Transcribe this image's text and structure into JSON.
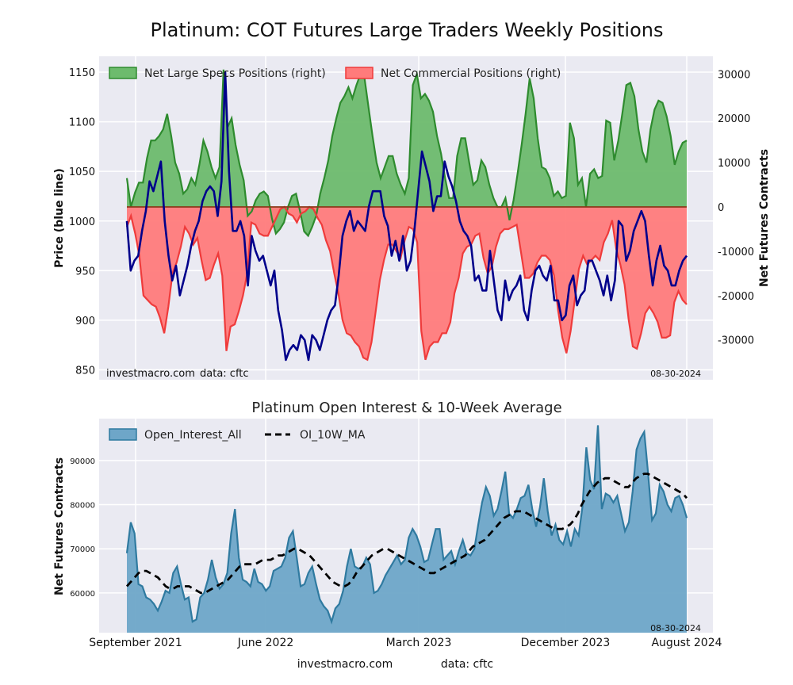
{
  "figure": {
    "main_title": "Platinum: COT Futures Large Traders Weekly Positions",
    "watermark": "investmacro.com",
    "data_source": "data: cftc",
    "date_stamp": "08-30-2024",
    "x_tick_labels": [
      "September 2021",
      "June 2022",
      "March 2023",
      "December 2023",
      "August 2024"
    ]
  },
  "chart_data": [
    {
      "type": "area",
      "title": "",
      "ylabel_left": "Price (blue line)",
      "ylabel_right": "Net Futures Contracts",
      "ylim_left": [
        840,
        1166
      ],
      "ylim_right": [
        -39000,
        34000
      ],
      "yticks_left": [
        850,
        900,
        950,
        1000,
        1050,
        1100,
        1150
      ],
      "yticks_right": [
        -30000,
        -20000,
        -10000,
        0,
        10000,
        20000,
        30000
      ],
      "legend_position": "top",
      "grid": true,
      "colors": {
        "specs": "#2e8b2e",
        "specs_fill": "#6dbb6d",
        "comm": "#ef3b3b",
        "comm_fill": "#ff7b7b",
        "price": "#00008b",
        "zero": "#8b3a1a"
      },
      "series": [
        {
          "name": "Net Large Specs Positions (right)",
          "axis": "right",
          "values": [
            6500,
            0,
            3200,
            5500,
            5500,
            11000,
            15000,
            15000,
            16000,
            17500,
            21000,
            16000,
            10000,
            7500,
            3000,
            4000,
            6500,
            5000,
            9500,
            15000,
            12500,
            9000,
            6500,
            9000,
            31000,
            18000,
            20000,
            14000,
            9500,
            6000,
            -2000,
            -1000,
            1500,
            3000,
            3500,
            2500,
            -2500,
            -6000,
            -5000,
            -3500,
            0,
            2500,
            3000,
            -1000,
            -5500,
            -6500,
            -4500,
            -2000,
            3000,
            6500,
            10500,
            16000,
            20000,
            23500,
            25000,
            27000,
            24500,
            27500,
            30000,
            29000,
            22500,
            16000,
            10000,
            6500,
            9000,
            11500,
            11500,
            7500,
            5000,
            3000,
            6500,
            27500,
            30000,
            24500,
            25500,
            24000,
            21500,
            16000,
            12000,
            6500,
            2000,
            2000,
            11500,
            15500,
            15500,
            10000,
            5000,
            6000,
            10500,
            9000,
            5000,
            2000,
            0,
            0,
            2000,
            -3000,
            1500,
            7500,
            14000,
            21000,
            29000,
            24500,
            15500,
            9000,
            8500,
            6500,
            2500,
            3500,
            2000,
            2500,
            19000,
            15500,
            5000,
            6500,
            0,
            7500,
            8500,
            6500,
            7000,
            19500,
            19000,
            10500,
            15000,
            21000,
            27500,
            28000,
            25000,
            17500,
            12500,
            10000,
            17500,
            22000,
            24000,
            23500,
            20500,
            16000,
            9500,
            12500,
            14500,
            15000
          ]
        },
        {
          "name": "Net Commercial Positions (right)",
          "axis": "right",
          "values": [
            -4500,
            -2000,
            -6000,
            -11000,
            -20000,
            -21000,
            -22000,
            -22500,
            -25000,
            -28500,
            -22500,
            -15000,
            -12500,
            -9000,
            -4500,
            -6000,
            -8500,
            -7000,
            -12000,
            -16500,
            -16000,
            -13000,
            -10500,
            -15500,
            -32500,
            -27000,
            -26500,
            -23500,
            -20000,
            -15000,
            -3500,
            -4000,
            -6000,
            -6500,
            -6500,
            -4500,
            -2500,
            -500,
            0,
            -1500,
            -2000,
            -3500,
            -1500,
            -1000,
            0,
            -500,
            -2500,
            -4000,
            -7500,
            -10000,
            -15000,
            -19500,
            -25500,
            -28500,
            -29000,
            -30500,
            -31500,
            -34000,
            -34500,
            -30500,
            -23500,
            -16500,
            -12000,
            -8500,
            -8500,
            -10000,
            -11500,
            -7500,
            -4500,
            -5000,
            -8000,
            -28000,
            -34500,
            -31500,
            -30500,
            -30500,
            -28500,
            -28500,
            -26000,
            -19500,
            -16000,
            -10500,
            -9000,
            -8500,
            -6500,
            -6000,
            -11500,
            -15000,
            -13500,
            -9000,
            -6000,
            -5000,
            -5000,
            -4500,
            -4000,
            -10000,
            -16000,
            -16000,
            -15000,
            -12500,
            -11000,
            -11000,
            -12000,
            -15500,
            -23500,
            -29500,
            -33000,
            -28000,
            -21000,
            -14000,
            -11000,
            -13000,
            -12000,
            -11000,
            -12000,
            -8000,
            -6000,
            -3000,
            -9500,
            -13000,
            -17500,
            -25500,
            -31500,
            -32000,
            -28500,
            -24000,
            -22500,
            -24000,
            -26000,
            -29500,
            -29500,
            -29000,
            -21500,
            -19000,
            -21000,
            -22000
          ]
        },
        {
          "name": "Price",
          "axis": "left",
          "values": [
            1000,
            950,
            960,
            965,
            990,
            1010,
            1040,
            1030,
            1045,
            1060,
            1000,
            965,
            940,
            955,
            925,
            940,
            955,
            975,
            990,
            1000,
            1020,
            1030,
            1035,
            1030,
            1005,
            1040,
            1150,
            1050,
            990,
            990,
            1000,
            985,
            935,
            985,
            970,
            960,
            965,
            950,
            935,
            950,
            910,
            890,
            860,
            870,
            875,
            870,
            885,
            880,
            860,
            885,
            880,
            870,
            885,
            900,
            910,
            915,
            945,
            985,
            1000,
            1010,
            990,
            1000,
            995,
            990,
            1015,
            1030,
            1030,
            1030,
            1005,
            995,
            965,
            980,
            960,
            985,
            950,
            960,
            990,
            1030,
            1070,
            1055,
            1040,
            1010,
            1025,
            1025,
            1060,
            1045,
            1035,
            1020,
            1000,
            990,
            985,
            975,
            940,
            945,
            930,
            930,
            970,
            940,
            910,
            900,
            940,
            920,
            930,
            935,
            945,
            910,
            900,
            930,
            950,
            955,
            945,
            940,
            955,
            920,
            920,
            900,
            905,
            935,
            945,
            915,
            925,
            930,
            960,
            960,
            950,
            940,
            925,
            945,
            920,
            940,
            1000,
            995,
            960,
            970,
            990,
            1000,
            1010,
            1000,
            965,
            935,
            960,
            975,
            955,
            950,
            935,
            935,
            950,
            960,
            965
          ]
        }
      ]
    },
    {
      "type": "area",
      "title": "Platinum Open Interest & 10-Week Average",
      "xlabel": "",
      "ylabel": "Net Futures Contracts",
      "ylim": [
        51000,
        99500
      ],
      "yticks": [
        60000,
        70000,
        80000,
        90000
      ],
      "legend_position": "top-left",
      "grid": true,
      "colors": {
        "oi_line": "#2f7aa0",
        "oi_fill": "#6ea6c8",
        "ma": "#000000"
      },
      "series": [
        {
          "name": "Open_Interest_All",
          "values": [
            69000,
            76000,
            73500,
            62000,
            61500,
            59000,
            58500,
            57500,
            56000,
            58000,
            60500,
            60000,
            64500,
            66000,
            62000,
            58500,
            59000,
            53500,
            54000,
            59000,
            60000,
            63000,
            67500,
            63500,
            61000,
            62000,
            64500,
            73500,
            79000,
            68000,
            63000,
            62500,
            61500,
            65500,
            62500,
            62000,
            60500,
            61500,
            65000,
            65500,
            66000,
            68000,
            72500,
            74000,
            68000,
            61500,
            62000,
            64500,
            66000,
            62000,
            58500,
            57000,
            56000,
            53500,
            56500,
            57500,
            60500,
            66000,
            70000,
            66000,
            65500,
            66000,
            68000,
            66500,
            60000,
            60500,
            62000,
            64000,
            65500,
            67000,
            68500,
            66500,
            67500,
            72500,
            74500,
            73000,
            70500,
            67000,
            67500,
            71000,
            74500,
            74500,
            67500,
            68500,
            69500,
            66500,
            69500,
            72000,
            69000,
            68500,
            70000,
            75500,
            80500,
            84000,
            82000,
            77500,
            79000,
            83000,
            87500,
            78000,
            77000,
            79000,
            81500,
            82000,
            84500,
            79000,
            75000,
            79500,
            86000,
            78500,
            73000,
            75500,
            72000,
            71000,
            74000,
            70500,
            74500,
            73000,
            79500,
            93000,
            85500,
            83500,
            98000,
            79000,
            82500,
            82000,
            80500,
            82000,
            78000,
            74000,
            76000,
            83000,
            92500,
            95000,
            96500,
            87000,
            76500,
            78000,
            84500,
            83000,
            80000,
            78500,
            81500,
            82000,
            80000,
            77000
          ]
        },
        {
          "name": "OI_10W_MA",
          "values": [
            61500,
            62500,
            63500,
            64500,
            65000,
            65000,
            64500,
            64000,
            63500,
            62500,
            61500,
            61000,
            61000,
            61500,
            61500,
            61500,
            61500,
            61000,
            60500,
            60000,
            60000,
            60500,
            61000,
            61500,
            62000,
            62500,
            63000,
            64000,
            65000,
            66000,
            66500,
            66500,
            66500,
            66500,
            67000,
            67500,
            67500,
            67500,
            68000,
            68500,
            68500,
            69000,
            69500,
            70000,
            70000,
            69500,
            69000,
            68500,
            67500,
            66500,
            65500,
            64500,
            63500,
            62500,
            62000,
            61500,
            61500,
            62000,
            63000,
            64500,
            65500,
            66500,
            67500,
            68500,
            69000,
            69500,
            70000,
            70000,
            69500,
            69000,
            68500,
            68000,
            67500,
            67000,
            66500,
            66000,
            65500,
            65000,
            64500,
            64500,
            65000,
            65500,
            66000,
            66500,
            67000,
            67500,
            68000,
            68500,
            69500,
            70500,
            71000,
            71500,
            72000,
            73000,
            74000,
            75000,
            76000,
            77000,
            77500,
            78000,
            78500,
            78500,
            78500,
            78000,
            77500,
            77000,
            76500,
            76000,
            75500,
            75000,
            74500,
            74500,
            74500,
            75000,
            75500,
            76500,
            78000,
            80000,
            81500,
            83000,
            84000,
            85000,
            85500,
            86000,
            86000,
            85500,
            85000,
            84500,
            84000,
            84000,
            85000,
            86000,
            86500,
            87000,
            87000,
            86500,
            86000,
            85500,
            85000,
            84500,
            84000,
            83500,
            83000,
            82500,
            81500
          ]
        }
      ]
    }
  ]
}
